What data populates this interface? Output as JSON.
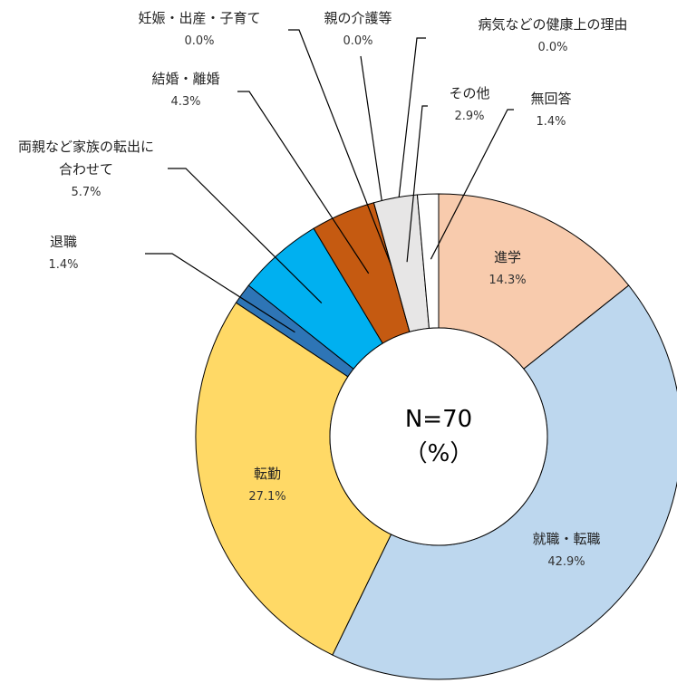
{
  "chart_data": {
    "type": "donut",
    "categories": [
      "進学",
      "就職・転職",
      "転勤",
      "退職",
      "両親など家族の転出に合わせて",
      "結婚・離婚",
      "妊娠・出産・子育て",
      "親の介護等",
      "病気などの健康上の理由",
      "その他",
      "無回答"
    ],
    "values": [
      14.3,
      42.9,
      27.1,
      1.4,
      5.7,
      4.3,
      0.0,
      0.0,
      0.0,
      2.9,
      1.4
    ],
    "value_labels": [
      "14.3%",
      "42.9%",
      "27.1%",
      "1.4%",
      "5.7%",
      "4.3%",
      "0.0%",
      "0.0%",
      "0.0%",
      "2.9%",
      "1.4%"
    ],
    "colors": [
      "#f8cbad",
      "#bdd7ee",
      "#ffd966",
      "#2e75b6",
      "#00b0f0",
      "#c55a11",
      "#a5a5a5",
      "#a5a5a5",
      "#a5a5a5",
      "#e7e6e6",
      "#ffffff"
    ],
    "center_text": [
      "N=70",
      "（%）"
    ]
  }
}
